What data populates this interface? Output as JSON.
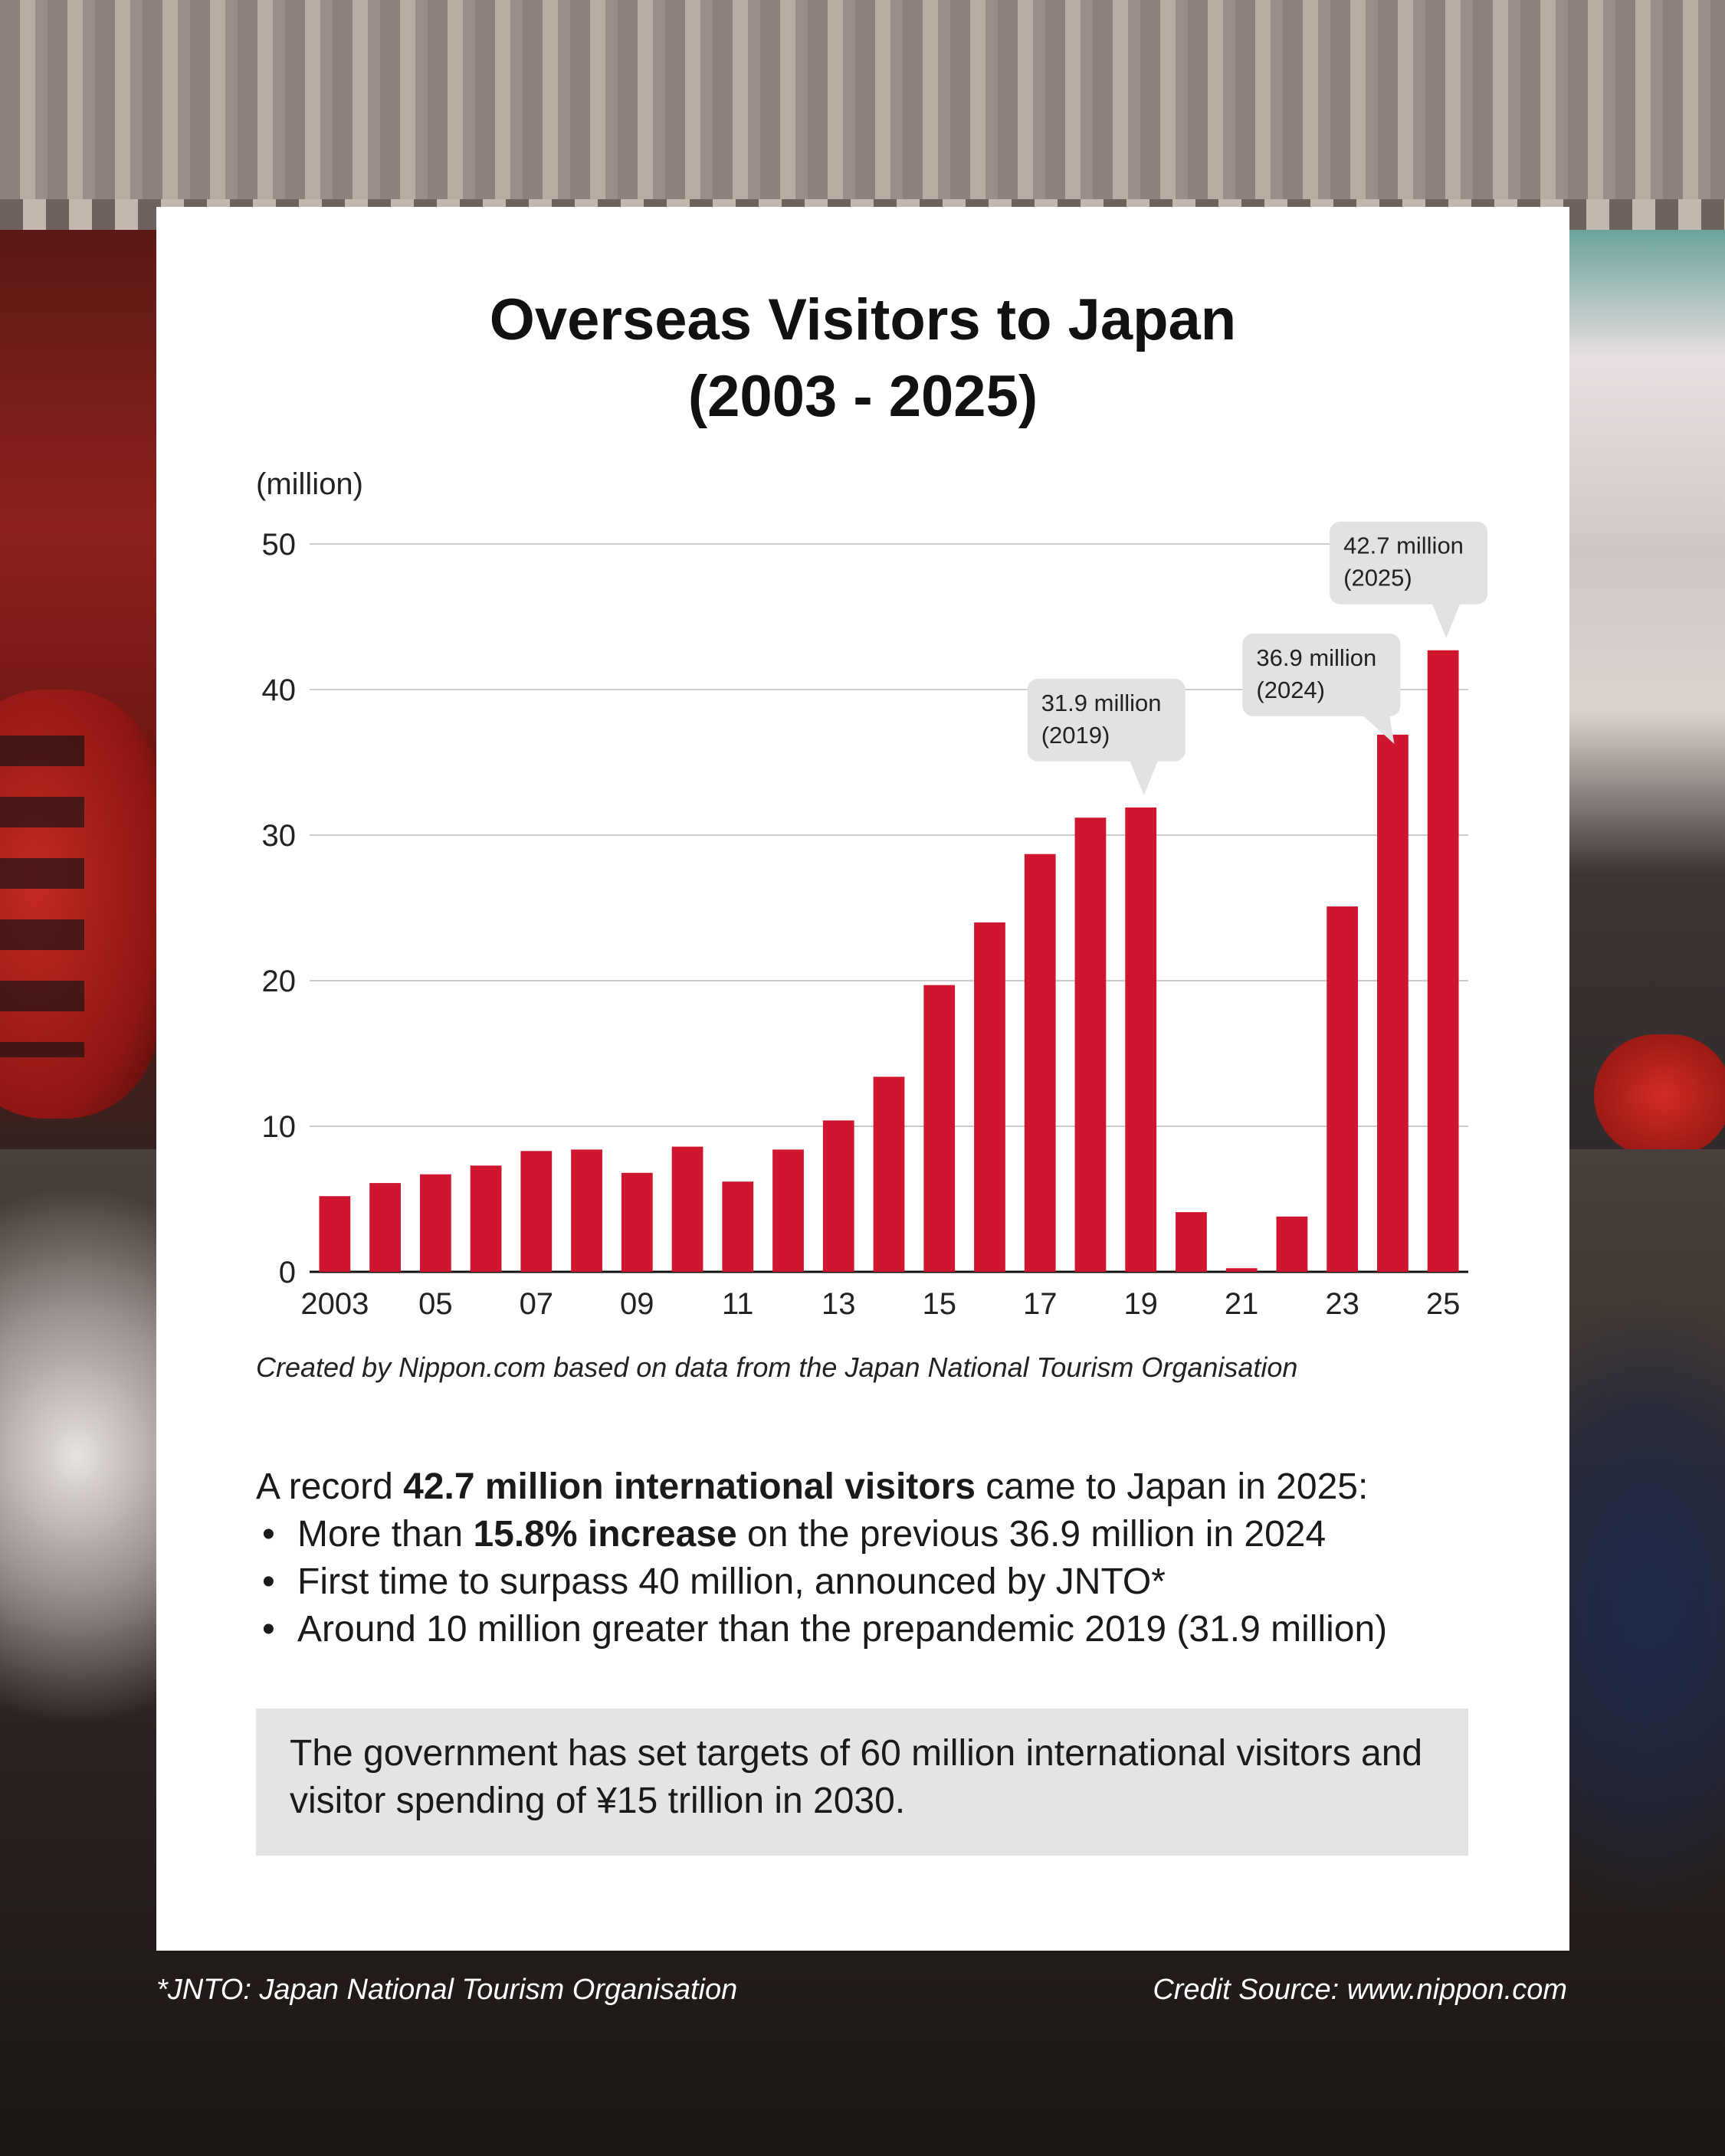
{
  "title_line1": "Overseas Visitors to Japan",
  "title_line2": "(2003 - 2025)",
  "chart_data": {
    "type": "bar",
    "title": "Overseas Visitors to Japan (2003 - 2025)",
    "ylabel": "(million)",
    "xlabel": "",
    "ylim": [
      0,
      50
    ],
    "yticks": [
      0,
      10,
      20,
      30,
      40,
      50
    ],
    "grid": true,
    "categories": [
      "2003",
      "2004",
      "2005",
      "2006",
      "2007",
      "2008",
      "2009",
      "2010",
      "2011",
      "2012",
      "2013",
      "2014",
      "2015",
      "2016",
      "2017",
      "2018",
      "2019",
      "2020",
      "2021",
      "2022",
      "2023",
      "2024",
      "2025"
    ],
    "xtick_labels": [
      "2003",
      "",
      "05",
      "",
      "07",
      "",
      "09",
      "",
      "11",
      "",
      "13",
      "",
      "15",
      "",
      "17",
      "",
      "19",
      "",
      "21",
      "",
      "23",
      "",
      "25"
    ],
    "values": [
      5.2,
      6.1,
      6.7,
      7.3,
      8.3,
      8.4,
      6.8,
      8.6,
      6.2,
      8.4,
      10.4,
      13.4,
      19.7,
      24.0,
      28.7,
      31.2,
      31.9,
      4.1,
      0.25,
      3.8,
      25.1,
      36.9,
      42.7
    ],
    "bar_color": "#d0162f",
    "annotations": [
      {
        "index": 16,
        "line1": "31.9 million",
        "line2": "(2019)"
      },
      {
        "index": 21,
        "line1": "36.9 million",
        "line2": "(2024)"
      },
      {
        "index": 22,
        "line1": "42.7 million",
        "line2": "(2025)"
      }
    ]
  },
  "source_note": "Created by Nippon.com based on data from the Japan National Tourism Organisation",
  "summary": {
    "intro_pre": "A record ",
    "intro_bold": "42.7 million international visitors",
    "intro_post": " came to Japan in 2025:",
    "bullet1_pre": "More than ",
    "bullet1_bold": "15.8% increase",
    "bullet1_post": " on the previous 36.9 million in 2024",
    "bullet2": "First time to surpass 40 million, announced by JNTO*",
    "bullet3": "Around 10 million greater than the prepandemic 2019 (31.9 million)"
  },
  "target_text": "The government has set targets of 60 million international visitors and visitor spending of ¥15 trillion in 2030.",
  "footnote": "*JNTO: Japan National Tourism Organisation",
  "credit": "Credit Source: www.nippon.com"
}
